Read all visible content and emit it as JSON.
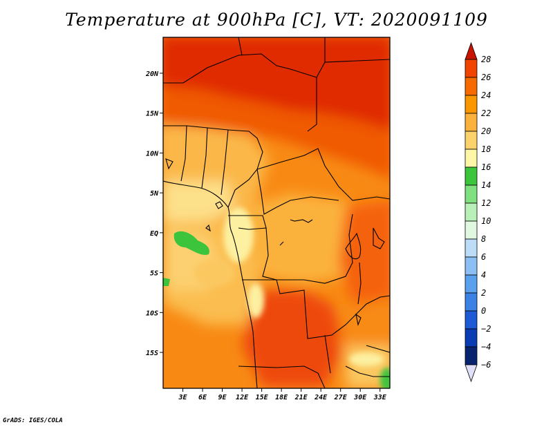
{
  "title": "Temperature at 900hPa [C], VT: 2020091109",
  "credit": "GrADS: IGES/COLA",
  "map": {
    "lon_range": [
      0,
      34.5
    ],
    "lat_range": [
      -19.5,
      24.5
    ],
    "lat_ticks": [
      {
        "value": 20,
        "label": "20N"
      },
      {
        "value": 15,
        "label": "15N"
      },
      {
        "value": 10,
        "label": "10N"
      },
      {
        "value": 5,
        "label": "5N"
      },
      {
        "value": 0,
        "label": "EQ"
      },
      {
        "value": -5,
        "label": "5S"
      },
      {
        "value": -10,
        "label": "10S"
      },
      {
        "value": -15,
        "label": "15S"
      }
    ],
    "lon_ticks": [
      {
        "value": 3,
        "label": "3E"
      },
      {
        "value": 6,
        "label": "6E"
      },
      {
        "value": 9,
        "label": "9E"
      },
      {
        "value": 12,
        "label": "12E"
      },
      {
        "value": 15,
        "label": "15E"
      },
      {
        "value": 18,
        "label": "18E"
      },
      {
        "value": 21,
        "label": "21E"
      },
      {
        "value": 24,
        "label": "24E"
      },
      {
        "value": 27,
        "label": "27E"
      },
      {
        "value": 30,
        "label": "30E"
      },
      {
        "value": 33,
        "label": "33E"
      }
    ]
  },
  "colorbar": {
    "levels": [
      28,
      26,
      24,
      22,
      20,
      18,
      16,
      14,
      12,
      10,
      8,
      6,
      4,
      2,
      0,
      -2,
      -4,
      -6
    ],
    "labels": [
      "28",
      "26",
      "24",
      "22",
      "20",
      "18",
      "16",
      "14",
      "12",
      "10",
      "8",
      "6",
      "4",
      "2",
      "0",
      "−2",
      "−4",
      "−6"
    ],
    "colors_top_down": [
      "#dd1c00",
      "#f04400",
      "#f76a00",
      "#fa9600",
      "#fbb23c",
      "#fbd26c",
      "#fdf5a8",
      "#3cc43c",
      "#80e080",
      "#b8f0b8",
      "#e0f8e0",
      "#bcdcf8",
      "#8cc0f4",
      "#5aa0ec",
      "#3c82e4",
      "#1e5ad6",
      "#0a3cb4",
      "#08246e",
      "#000a5a"
    ],
    "top_arrow_color": "#c81400",
    "bottom_arrow_color": "#e0e0f8"
  }
}
